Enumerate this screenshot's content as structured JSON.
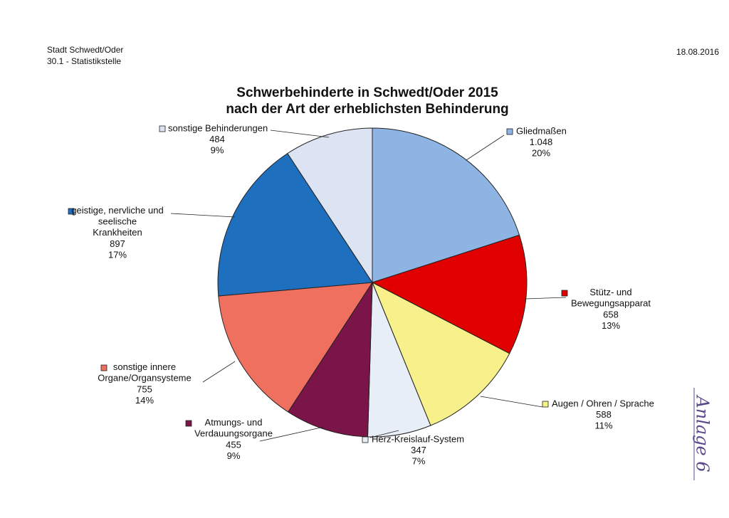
{
  "header": {
    "org": "Stadt Schwedt/Oder",
    "department": "30.1 - Statistikstelle",
    "date": "18.08.2016"
  },
  "annotation": "Anlage 6",
  "chart_data": {
    "type": "pie",
    "title": "Schwerbehinderte in Schwedt/Oder 2015\nnach der Art der erheblichsten Behinderung",
    "categories": [
      "Gliedmaßen",
      "Stütz- und\nBewegungsapparat",
      "Augen / Ohren / Sprache",
      "Herz-Kreislauf-System",
      "Atmungs- und\nVerdauungsorgane",
      "sonstige innere\nOrgane/Organsysteme",
      "geistige, nervliche und\nseelische\nKrankheiten",
      "sonstige Behinderungen"
    ],
    "values": [
      1048,
      658,
      588,
      347,
      455,
      755,
      897,
      484
    ],
    "value_labels": [
      "1.048",
      "658",
      "588",
      "347",
      "455",
      "755",
      "897",
      "484"
    ],
    "percent_labels": [
      "20%",
      "13%",
      "11%",
      "7%",
      "9%",
      "14%",
      "17%",
      "9%"
    ],
    "colors": [
      "#8db4e2",
      "#e00000",
      "#f8f08a",
      "#e8eef8",
      "#7b1448",
      "#f07060",
      "#1f6fbf",
      "#dce4f4"
    ],
    "start_angle": "top",
    "direction": "clockwise"
  }
}
